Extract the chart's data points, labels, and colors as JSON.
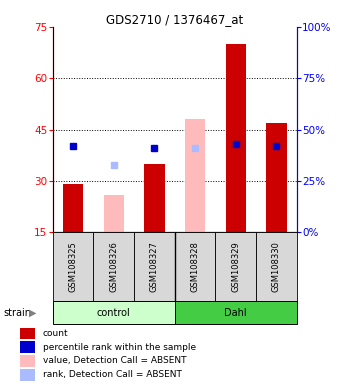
{
  "title": "GDS2710 / 1376467_at",
  "samples": [
    "GSM108325",
    "GSM108326",
    "GSM108327",
    "GSM108328",
    "GSM108329",
    "GSM108330"
  ],
  "groups": [
    "control",
    "control",
    "control",
    "Dahl",
    "Dahl",
    "Dahl"
  ],
  "bar_colors": {
    "count_present": "#cc0000",
    "count_absent": "#ffbbbb",
    "rank_present": "#0000cc",
    "rank_absent": "#aabbff"
  },
  "ylim_left": [
    15,
    75
  ],
  "ylim_right": [
    0,
    100
  ],
  "yticks_left": [
    15,
    30,
    45,
    60,
    75
  ],
  "yticks_right": [
    0,
    25,
    50,
    75,
    100
  ],
  "ylabel_right_labels": [
    "0%",
    "25%",
    "50%",
    "75%",
    "100%"
  ],
  "count_values": [
    29,
    null,
    35,
    null,
    70,
    47
  ],
  "rank_values": [
    42,
    null,
    41,
    null,
    43,
    42
  ],
  "count_absent_values": [
    null,
    26,
    null,
    48,
    null,
    null
  ],
  "rank_absent_values": [
    null,
    33,
    null,
    41,
    null,
    null
  ],
  "detection_absent": [
    false,
    true,
    false,
    true,
    false,
    false
  ],
  "sample_bg_color": "#d8d8d8",
  "plot_bg": "#ffffff",
  "dotted_lines": [
    30,
    45,
    60
  ],
  "control_color": "#ccffcc",
  "dahl_color": "#44cc44",
  "legend_items": [
    {
      "color": "#cc0000",
      "label": "count"
    },
    {
      "color": "#0000cc",
      "label": "percentile rank within the sample"
    },
    {
      "color": "#ffbbbb",
      "label": "value, Detection Call = ABSENT"
    },
    {
      "color": "#aabbff",
      "label": "rank, Detection Call = ABSENT"
    }
  ],
  "bar_width": 0.5
}
